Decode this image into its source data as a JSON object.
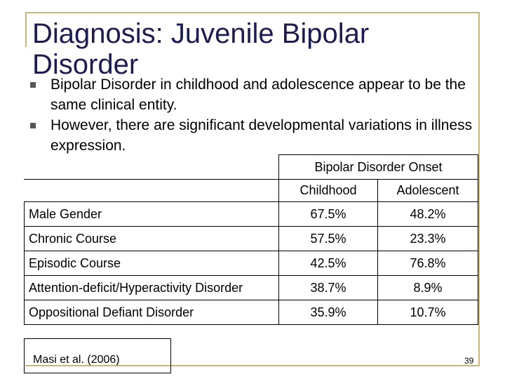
{
  "slide": {
    "title": "Diagnosis: Juvenile Bipolar Disorder",
    "bullets": [
      "Bipolar Disorder in childhood and adolescence appear to be the same clinical entity.",
      "However, there are significant developmental variations in illness expression."
    ],
    "table": {
      "group_header": "Bipolar Disorder Onset",
      "columns": [
        "Childhood",
        "Adolescent"
      ],
      "rows": [
        {
          "label": "Male Gender",
          "childhood": "67.5%",
          "adolescent": "48.2%"
        },
        {
          "label": "Chronic Course",
          "childhood": "57.5%",
          "adolescent": "23.3%"
        },
        {
          "label": "Episodic Course",
          "childhood": "42.5%",
          "adolescent": "76.8%"
        },
        {
          "label": "Attention-deficit/Hyperactivity Disorder",
          "childhood": "38.7%",
          "adolescent": "8.9%"
        },
        {
          "label": "Oppositional Defiant Disorder",
          "childhood": "35.9%",
          "adolescent": "10.7%"
        }
      ]
    },
    "citation": "Masi et al. (2006)",
    "page_number": "39",
    "colors": {
      "title": "#1c1c4e",
      "frame": "#c8b67a",
      "bullet": "#555555"
    }
  }
}
